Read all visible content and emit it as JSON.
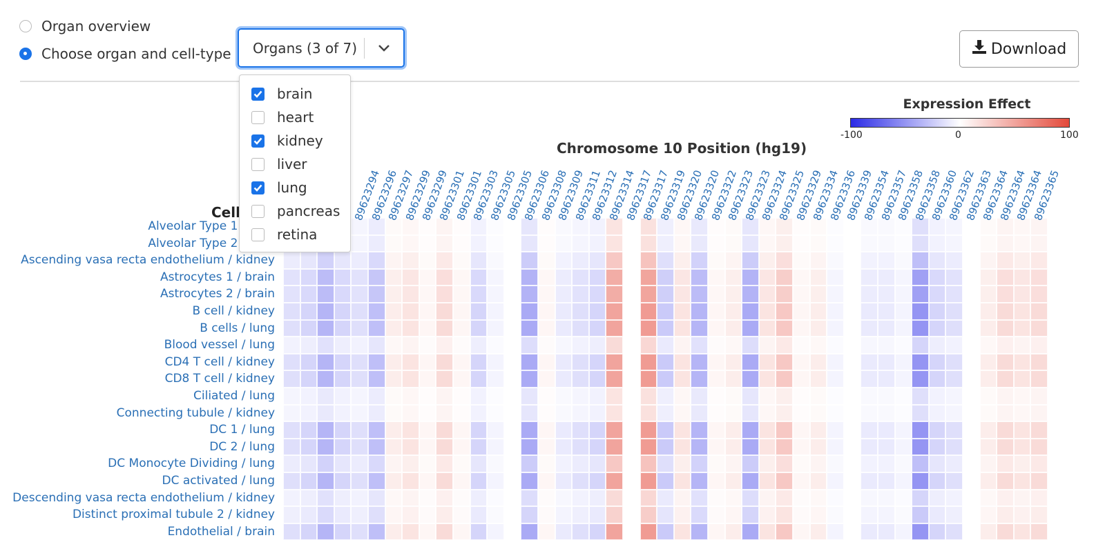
{
  "mode": {
    "options": [
      {
        "label": "Organ overview",
        "selected": false
      },
      {
        "label": "Choose organ and cell-type",
        "selected": true
      }
    ]
  },
  "organ_select": {
    "display": "Organs (3 of 7)",
    "options": [
      {
        "label": "brain",
        "checked": true
      },
      {
        "label": "heart",
        "checked": false
      },
      {
        "label": "kidney",
        "checked": true
      },
      {
        "label": "liver",
        "checked": false
      },
      {
        "label": "lung",
        "checked": true
      },
      {
        "label": "pancreas",
        "checked": false
      },
      {
        "label": "retina",
        "checked": false
      }
    ]
  },
  "download": {
    "label": "Download"
  },
  "legend": {
    "title": "Expression Effect",
    "min_label": "-100",
    "mid_label": "0",
    "max_label": "100",
    "colors": {
      "low": "#2b2be6",
      "mid": "#ffffff",
      "high": "#e3493a"
    }
  },
  "chart_data": {
    "type": "heatmap",
    "title": "Chromosome 10 Position (hg19)",
    "y_heading": "Cell",
    "x_labels": [
      "89623294",
      "89623296",
      "89623297",
      "89623299",
      "89623299",
      "89623301",
      "89623301",
      "89623303",
      "89623305",
      "89623305",
      "89623306",
      "89623308",
      "89623309",
      "89623311",
      "89623312",
      "89623314",
      "89623317",
      "89623317",
      "89623319",
      "89623320",
      "89623320",
      "89623322",
      "89623323",
      "89623323",
      "89623324",
      "89623325",
      "89623329",
      "89623334",
      "89623336",
      "89623339",
      "89623354",
      "89623357",
      "89623358",
      "89623358",
      "89623360",
      "89623362",
      "89623363",
      "89623364",
      "89623364",
      "89623364",
      "89623365"
    ],
    "rows": [
      "Alveolar Type 1 / lung",
      "Alveolar Type 2 / lung",
      "Ascending vasa recta endothelium / kidney",
      "Astrocytes 1 / brain",
      "Astrocytes 2 / brain",
      "B cell / kidney",
      "B cells / lung",
      "Blood vessel / lung",
      "CD4 T cell / kidney",
      "CD8 T cell / kidney",
      "Ciliated / lung",
      "Connecting tubule / kidney",
      "DC 1 / lung",
      "DC 2 / lung",
      "DC Monocyte Dividing / lung",
      "DC activated / lung",
      "Descending vasa recta endothelium / kidney",
      "Distinct proximal tubule 2 / kidney",
      "Endothelial / brain"
    ],
    "value_range": [
      -100,
      100
    ]
  }
}
